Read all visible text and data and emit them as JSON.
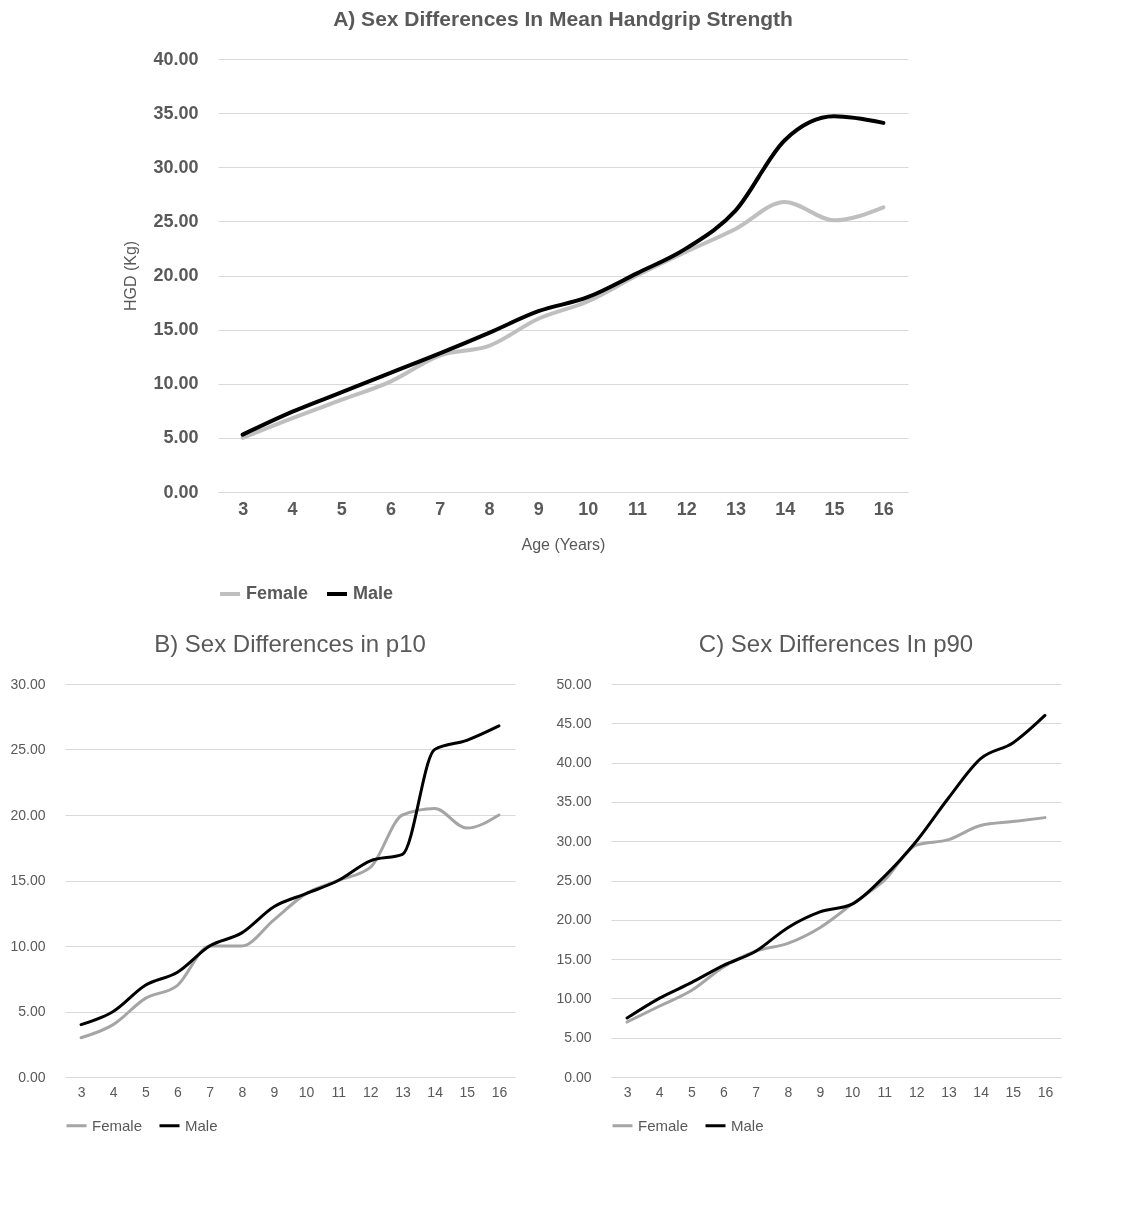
{
  "chart_data": [
    {
      "type": "line",
      "title": "A) Sex Differences In Mean Handgrip Strength",
      "xlabel": "Age (Years)",
      "ylabel": "HGD (Kg)",
      "categories": [
        "3",
        "4",
        "5",
        "6",
        "7",
        "8",
        "9",
        "10",
        "11",
        "12",
        "13",
        "14",
        "15",
        "16"
      ],
      "series": [
        {
          "name": "Female",
          "color": "#bfbfbf",
          "values": [
            5.0,
            6.8,
            8.5,
            10.2,
            12.6,
            13.5,
            16.0,
            17.6,
            20.0,
            22.2,
            24.3,
            26.8,
            25.1,
            26.3
          ]
        },
        {
          "name": "Male",
          "color": "#000000",
          "values": [
            5.3,
            7.4,
            9.2,
            11.0,
            12.8,
            14.7,
            16.7,
            18.0,
            20.2,
            22.5,
            26.0,
            32.5,
            34.7,
            34.1
          ]
        }
      ],
      "ylim": [
        0,
        40
      ],
      "yticks": [
        {
          "value": 0,
          "label": "0.00"
        },
        {
          "value": 5,
          "label": "5.00"
        },
        {
          "value": 10,
          "label": "10.00"
        },
        {
          "value": 15,
          "label": "15.00"
        },
        {
          "value": 20,
          "label": "20.00"
        },
        {
          "value": 25,
          "label": "25.00"
        },
        {
          "value": 30,
          "label": "30.00"
        },
        {
          "value": 35,
          "label": "35.00"
        },
        {
          "value": 40,
          "label": "40.00"
        }
      ],
      "grid": "y",
      "legend": "bottom",
      "marker": "none",
      "line_style": "solid"
    },
    {
      "type": "line",
      "title": "B) Sex Differences in p10",
      "categories": [
        "3",
        "4",
        "5",
        "6",
        "7",
        "8",
        "9",
        "10",
        "11",
        "12",
        "13",
        "14",
        "15",
        "16"
      ],
      "series": [
        {
          "name": "Female",
          "color": "#a5a5a5",
          "values": [
            3.0,
            4.0,
            6.0,
            7.0,
            10.0,
            10.0,
            12.0,
            14.0,
            15.0,
            16.0,
            20.0,
            20.5,
            19.0,
            20.0
          ]
        },
        {
          "name": "Male",
          "color": "#000000",
          "values": [
            4.0,
            5.0,
            7.0,
            8.0,
            10.0,
            11.0,
            13.0,
            14.0,
            15.0,
            16.5,
            17.0,
            25.0,
            25.7,
            26.8
          ]
        }
      ],
      "ylim": [
        0,
        30
      ],
      "yticks": [
        {
          "value": 0,
          "label": "0.00"
        },
        {
          "value": 5,
          "label": "5.00"
        },
        {
          "value": 10,
          "label": "10.00"
        },
        {
          "value": 15,
          "label": "15.00"
        },
        {
          "value": 20,
          "label": "20.00"
        },
        {
          "value": 25,
          "label": "25.00"
        },
        {
          "value": 30,
          "label": "30.00"
        }
      ],
      "grid": "y",
      "legend": "bottom",
      "marker": "none",
      "line_style": "solid"
    },
    {
      "type": "line",
      "title": "C) Sex Differences In p90",
      "categories": [
        "3",
        "4",
        "5",
        "6",
        "7",
        "8",
        "9",
        "10",
        "11",
        "12",
        "13",
        "14",
        "15",
        "16"
      ],
      "series": [
        {
          "name": "Female",
          "color": "#a5a5a5",
          "values": [
            7.0,
            9.0,
            11.0,
            14.0,
            16.0,
            17.0,
            19.0,
            22.0,
            25.0,
            29.5,
            30.2,
            32.0,
            32.5,
            33.0
          ]
        },
        {
          "name": "Male",
          "color": "#000000",
          "values": [
            7.5,
            10.0,
            12.0,
            14.2,
            16.0,
            19.0,
            21.0,
            22.0,
            25.5,
            30.0,
            35.5,
            40.5,
            42.5,
            46.0
          ]
        }
      ],
      "ylim": [
        0,
        50
      ],
      "yticks": [
        {
          "value": 0,
          "label": "0.00"
        },
        {
          "value": 5,
          "label": "5.00"
        },
        {
          "value": 10,
          "label": "10.00"
        },
        {
          "value": 15,
          "label": "15.00"
        },
        {
          "value": 20,
          "label": "20.00"
        },
        {
          "value": 25,
          "label": "25.00"
        },
        {
          "value": 30,
          "label": "30.00"
        },
        {
          "value": 35,
          "label": "35.00"
        },
        {
          "value": 40,
          "label": "40.00"
        },
        {
          "value": 45,
          "label": "45.00"
        },
        {
          "value": 50,
          "label": "50.00"
        }
      ],
      "grid": "y",
      "legend": "bottom",
      "marker": "none",
      "line_style": "solid"
    }
  ]
}
